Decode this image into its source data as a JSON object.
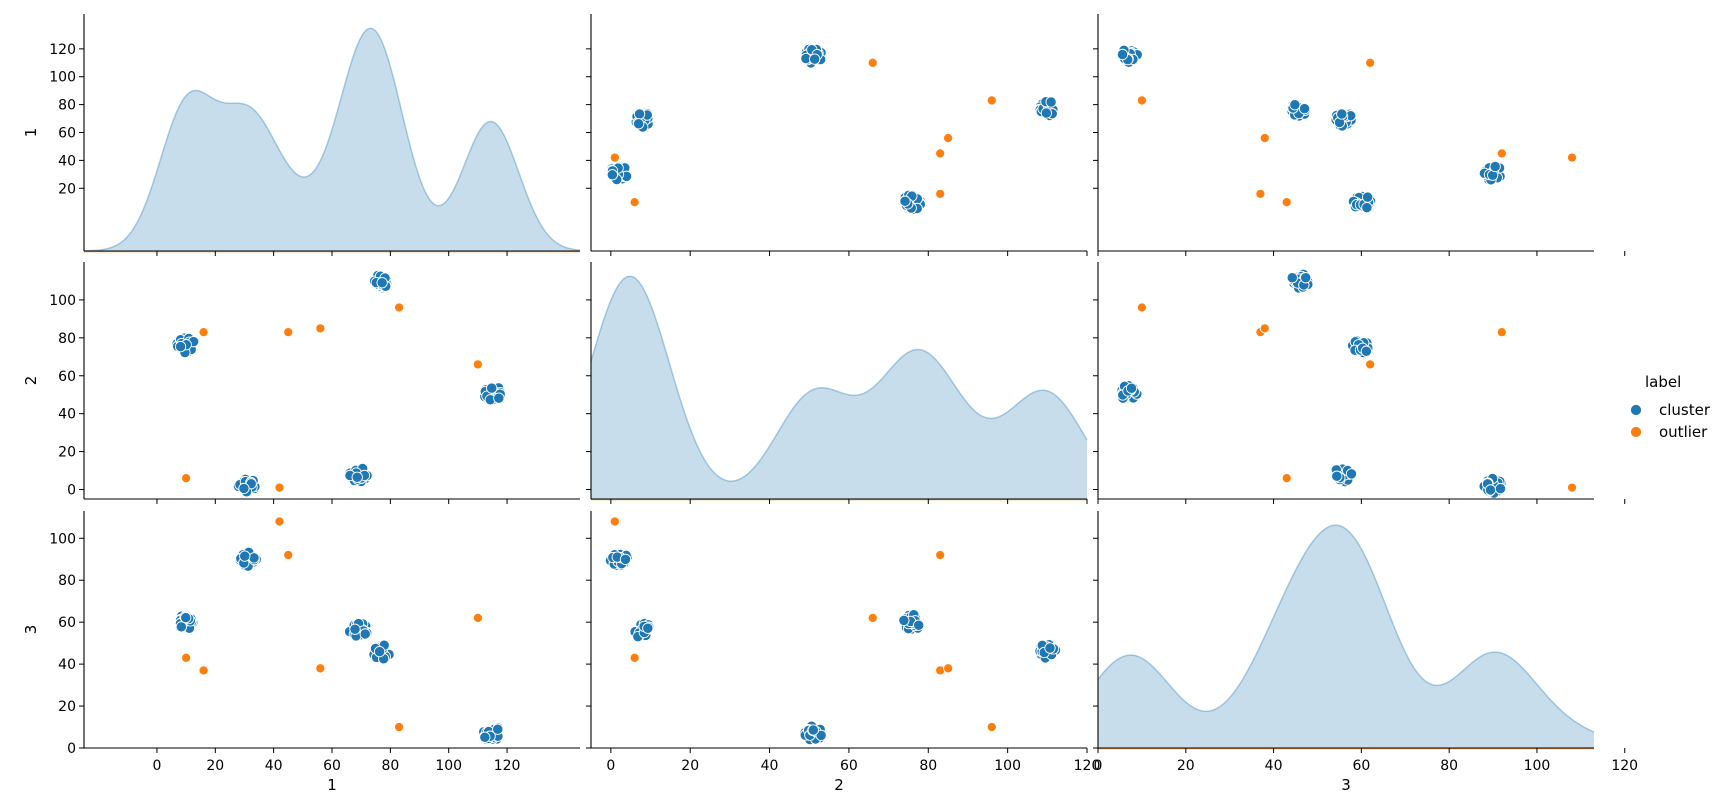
{
  "chart_data": {
    "type": "scatter",
    "variables": [
      "1",
      "2",
      "3"
    ],
    "hue": {
      "title": "label",
      "levels": [
        {
          "name": "cluster",
          "color": "#1f77b4"
        },
        {
          "name": "outlier",
          "color": "#ff7f0e"
        }
      ]
    },
    "diag_type": "kde",
    "diag_fill": "#1f77b4",
    "legend_placement": "center-right",
    "grid": false,
    "axes": {
      "1": {
        "range": [
          -25,
          145
        ],
        "ticks": [
          0,
          20,
          40,
          60,
          80,
          100,
          120
        ],
        "row_ticks": [
          20,
          40,
          60,
          80,
          100,
          120
        ]
      },
      "2": {
        "range": [
          -5,
          120
        ],
        "ticks": [
          0,
          20,
          40,
          60,
          80,
          100,
          120
        ],
        "row_ticks": [
          0,
          20,
          40,
          60,
          80,
          100
        ]
      },
      "3": {
        "range": [
          0,
          113
        ],
        "ticks": [
          0,
          20,
          40,
          60,
          80,
          100,
          120
        ],
        "row_ticks": [
          0,
          20,
          40,
          60,
          80,
          100
        ]
      }
    },
    "clusters": [
      {
        "v1": 10,
        "v2": 76,
        "v3": 60
      },
      {
        "v1": 31,
        "v2": 2,
        "v3": 90
      },
      {
        "v1": 69,
        "v2": 8,
        "v3": 56
      },
      {
        "v1": 77,
        "v2": 110,
        "v3": 46
      },
      {
        "v1": 115,
        "v2": 51,
        "v3": 7
      }
    ],
    "outliers": [
      {
        "v1": 42,
        "v2": 1,
        "v3": 108
      },
      {
        "v1": 45,
        "v2": 83,
        "v3": 92
      },
      {
        "v1": 110,
        "v2": 66,
        "v3": 62
      },
      {
        "v1": 10,
        "v2": 6,
        "v3": 43
      },
      {
        "v1": 16,
        "v2": 83,
        "v3": 37
      },
      {
        "v1": 56,
        "v2": 85,
        "v3": 38
      },
      {
        "v1": 83,
        "v2": 96,
        "v3": 10
      }
    ]
  }
}
